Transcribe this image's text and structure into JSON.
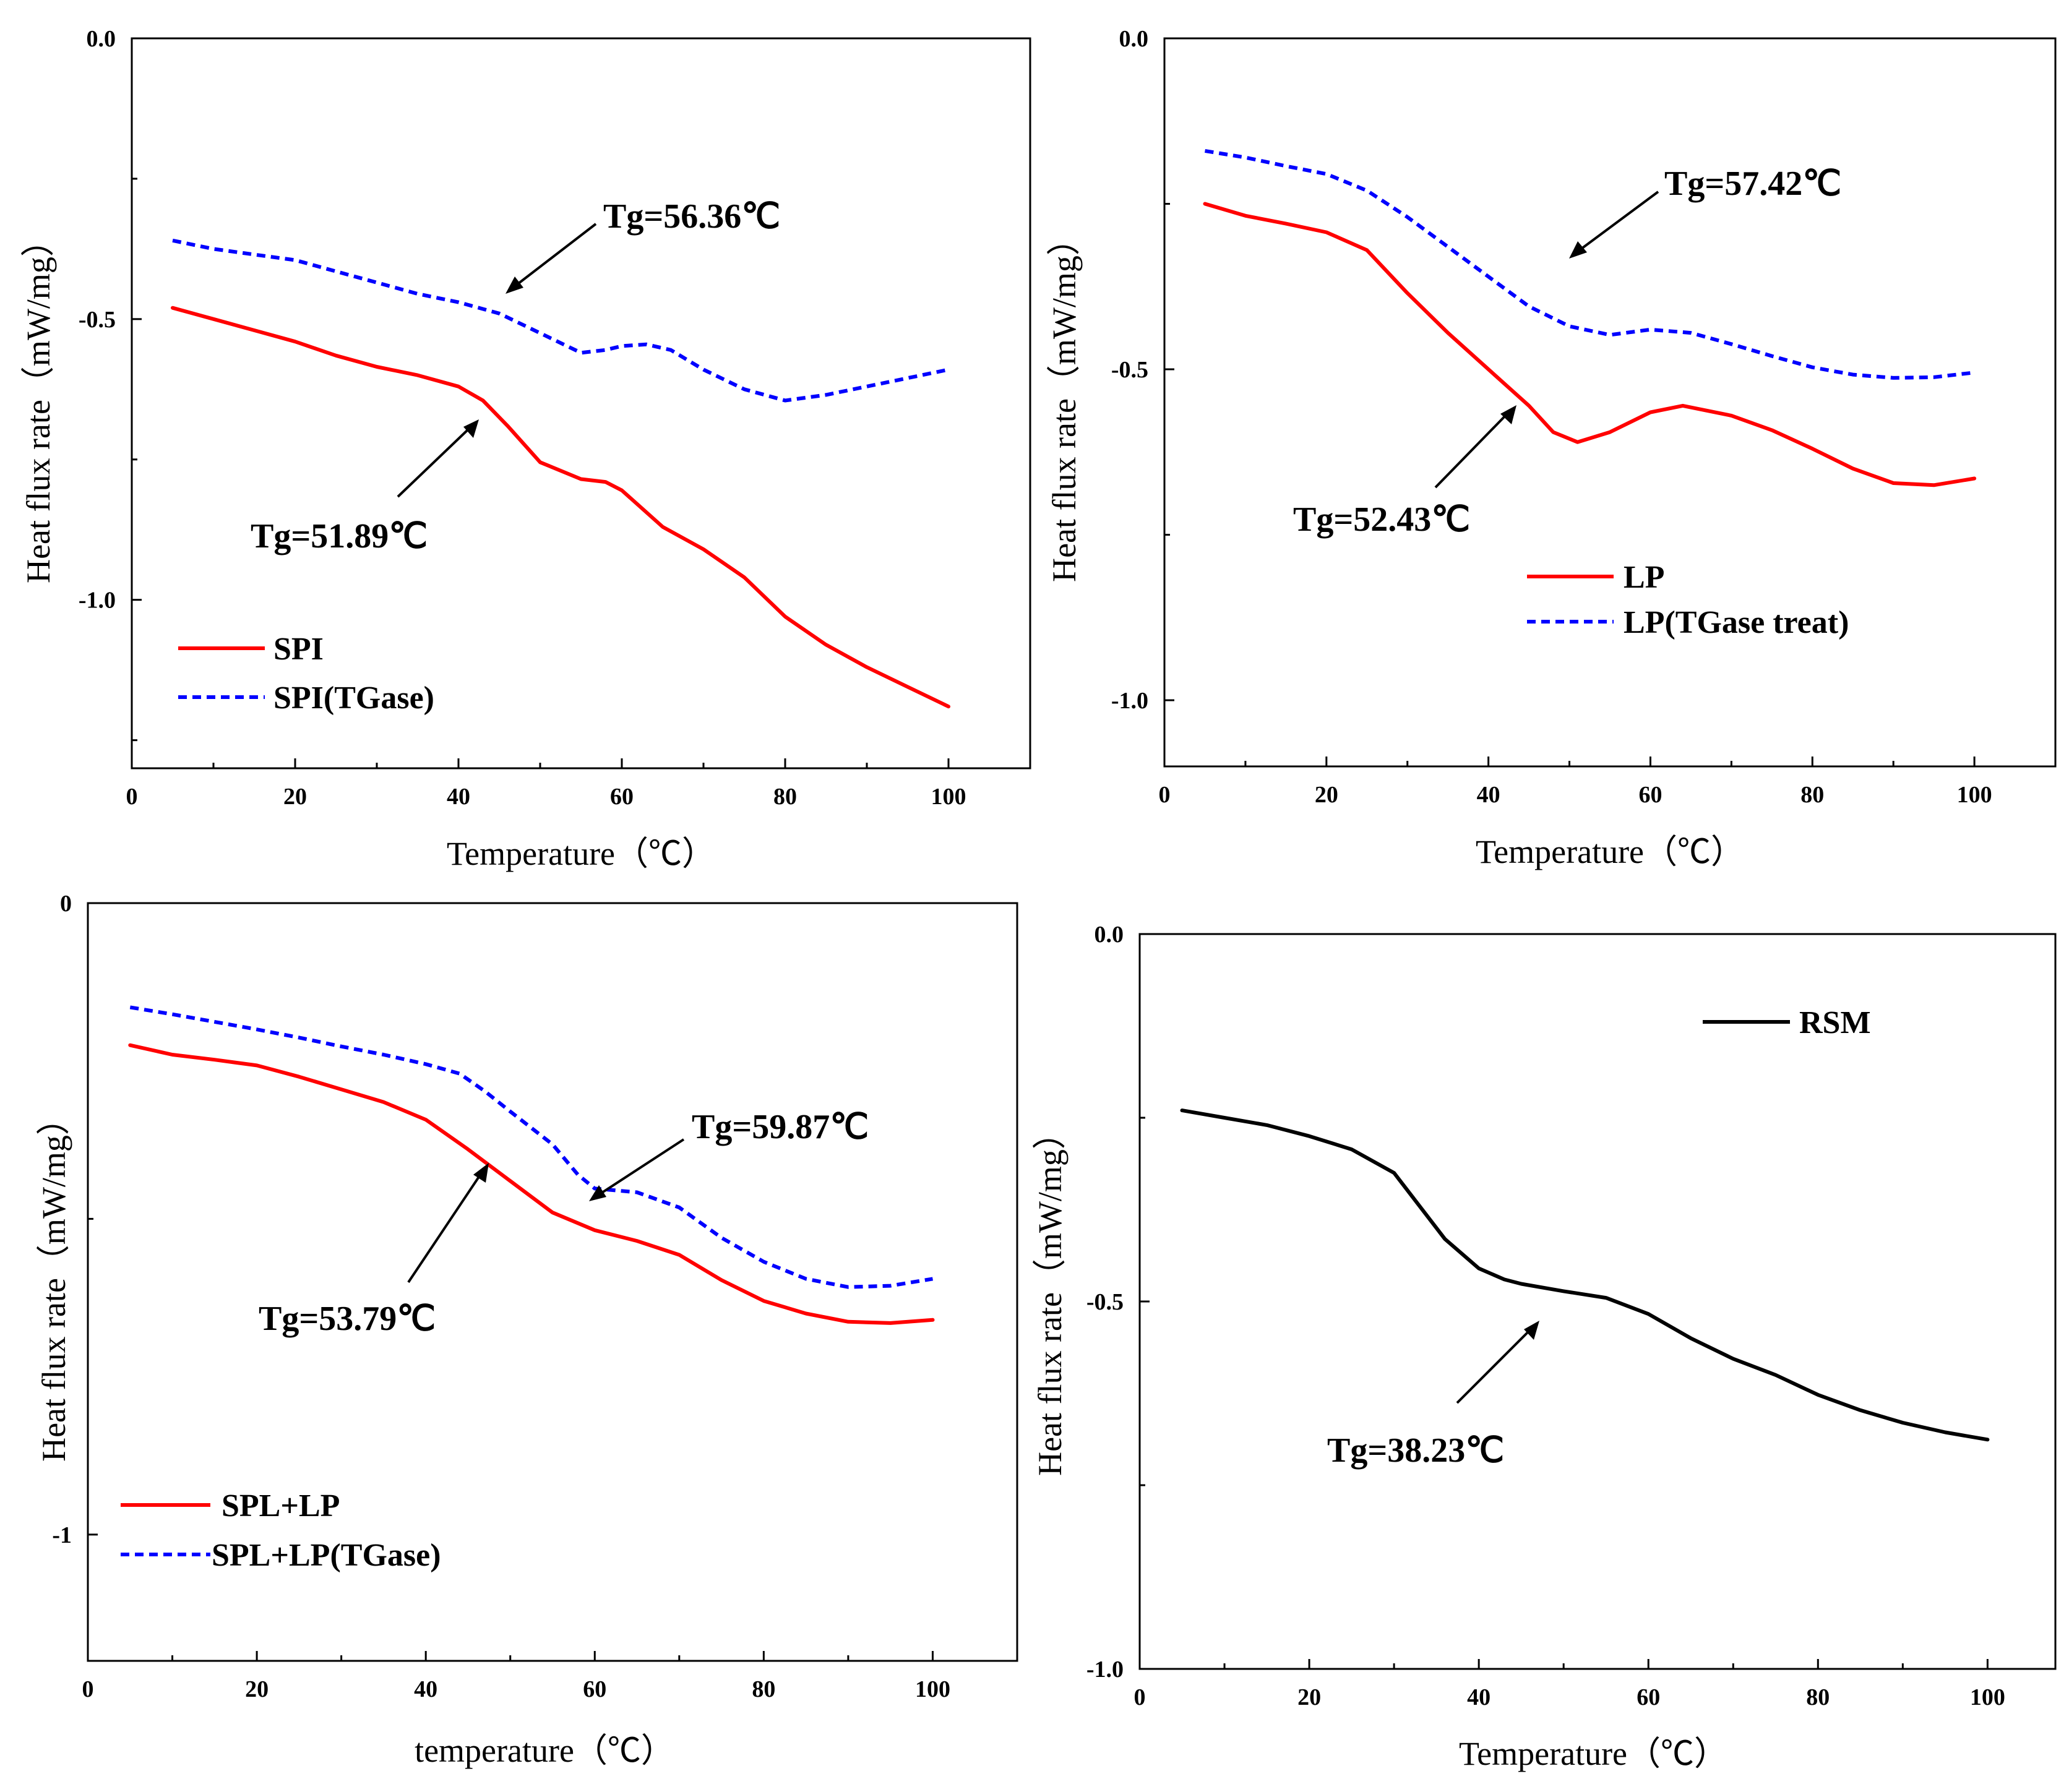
{
  "chart_data": [
    {
      "type": "line",
      "xlabel": "Temperature（℃）",
      "ylabel": "Heat flux rate（mW/mg）",
      "xlim": [
        0,
        110
      ],
      "ylim": [
        -1.3,
        0.0
      ],
      "xticks": [
        0,
        20,
        40,
        60,
        80,
        100
      ],
      "xtick_labels": [
        "0",
        "20",
        "40",
        "60",
        "80",
        "100"
      ],
      "yticks": [
        0.0,
        -0.5,
        -1.0
      ],
      "ytick_labels": [
        "0.0",
        "-0.5",
        "-1.0"
      ],
      "legend_position": "bottom-left",
      "series": [
        {
          "name": "SPI",
          "color": "#ff0000",
          "style": "solid",
          "x": [
            5,
            10,
            15,
            20,
            25,
            30,
            35,
            40,
            43,
            46,
            50,
            55,
            58,
            60,
            65,
            70,
            75,
            80,
            85,
            90,
            95,
            100
          ],
          "y": [
            -0.48,
            -0.5,
            -0.52,
            -0.54,
            -0.565,
            -0.585,
            -0.6,
            -0.62,
            -0.645,
            -0.69,
            -0.755,
            -0.785,
            -0.79,
            -0.805,
            -0.87,
            -0.91,
            -0.96,
            -1.03,
            -1.08,
            -1.12,
            -1.155,
            -1.19
          ]
        },
        {
          "name": "SPI(TGase)",
          "color": "#0000ff",
          "style": "dashed",
          "x": [
            5,
            10,
            15,
            20,
            25,
            30,
            35,
            40,
            45,
            50,
            55,
            58,
            60,
            63,
            66,
            70,
            75,
            80,
            85,
            90,
            95,
            100
          ],
          "y": [
            -0.36,
            -0.375,
            -0.385,
            -0.395,
            -0.415,
            -0.435,
            -0.455,
            -0.47,
            -0.49,
            -0.525,
            -0.56,
            -0.555,
            -0.548,
            -0.545,
            -0.555,
            -0.59,
            -0.625,
            -0.645,
            -0.635,
            -0.62,
            -0.605,
            -0.59
          ]
        }
      ],
      "annotations": [
        {
          "text": "Tg=56.36℃",
          "x": 45.4,
          "y": -0.45
        },
        {
          "text": "Tg=51.89℃",
          "x": 42.0,
          "y": -0.68
        }
      ]
    },
    {
      "type": "line",
      "xlabel": "Temperature（℃）",
      "ylabel": "Heat flux rate（mW/mg）",
      "xlim": [
        0,
        110
      ],
      "ylim": [
        -1.1,
        0.0
      ],
      "xticks": [
        0,
        20,
        40,
        60,
        80,
        100
      ],
      "xtick_labels": [
        "0",
        "20",
        "40",
        "60",
        "80",
        "100"
      ],
      "yticks": [
        0.0,
        -0.5,
        -1.0
      ],
      "ytick_labels": [
        "0.0",
        "-0.5",
        "-1.0"
      ],
      "legend_position": "bottom-right",
      "series": [
        {
          "name": "LP",
          "color": "#ff0000",
          "style": "solid",
          "x": [
            5,
            10,
            15,
            20,
            25,
            30,
            35,
            40,
            45,
            48,
            51,
            55,
            60,
            64,
            70,
            75,
            80,
            85,
            90,
            95,
            100
          ],
          "y": [
            -0.25,
            -0.268,
            -0.28,
            -0.293,
            -0.32,
            -0.385,
            -0.445,
            -0.5,
            -0.555,
            -0.595,
            -0.61,
            -0.595,
            -0.565,
            -0.555,
            -0.57,
            -0.592,
            -0.62,
            -0.65,
            -0.672,
            -0.675,
            -0.665
          ]
        },
        {
          "name": "LP(TGase treat)",
          "color": "#0000ff",
          "style": "dashed",
          "x": [
            5,
            10,
            15,
            20,
            25,
            30,
            35,
            40,
            45,
            50,
            55,
            60,
            65,
            70,
            75,
            80,
            85,
            90,
            95,
            100
          ],
          "y": [
            -0.17,
            -0.18,
            -0.193,
            -0.205,
            -0.23,
            -0.27,
            -0.315,
            -0.36,
            -0.405,
            -0.435,
            -0.448,
            -0.44,
            -0.445,
            -0.462,
            -0.48,
            -0.497,
            -0.508,
            -0.513,
            -0.512,
            -0.505
          ]
        }
      ],
      "annotations": [
        {
          "text": "Tg=57.42℃",
          "x": 50.5,
          "y": -0.33
        },
        {
          "text": "Tg=52.43℃",
          "x": 43.7,
          "y": -0.55
        }
      ]
    },
    {
      "type": "line",
      "xlabel": "temperature（℃）",
      "ylabel": "Heat flux rate（mW/mg）",
      "xlim": [
        0,
        110
      ],
      "ylim": [
        -1.2,
        0.0
      ],
      "xticks": [
        0,
        20,
        40,
        60,
        80,
        100
      ],
      "xtick_labels": [
        "0",
        "20",
        "40",
        "60",
        "80",
        "100"
      ],
      "yticks": [
        0,
        -1
      ],
      "ytick_labels": [
        "0",
        "-1"
      ],
      "legend_position": "bottom-left",
      "series": [
        {
          "name": "SPL+LP",
          "color": "#ff0000",
          "style": "solid",
          "x": [
            5,
            10,
            15,
            20,
            25,
            30,
            35,
            40,
            45,
            50,
            55,
            60,
            65,
            70,
            75,
            80,
            85,
            90,
            95,
            100
          ],
          "y": [
            -0.225,
            -0.24,
            -0.248,
            -0.257,
            -0.275,
            -0.295,
            -0.315,
            -0.343,
            -0.39,
            -0.44,
            -0.49,
            -0.518,
            -0.535,
            -0.557,
            -0.597,
            -0.63,
            -0.65,
            -0.663,
            -0.665,
            -0.66
          ]
        },
        {
          "name": "SPL+LP(TGase)",
          "color": "#0000ff",
          "style": "dashed",
          "x": [
            5,
            10,
            15,
            20,
            25,
            30,
            35,
            40,
            44,
            47,
            50,
            55,
            58,
            60,
            65,
            70,
            75,
            80,
            85,
            90,
            95,
            100
          ],
          "y": [
            -0.165,
            -0.176,
            -0.188,
            -0.2,
            -0.213,
            -0.227,
            -0.24,
            -0.255,
            -0.27,
            -0.298,
            -0.33,
            -0.382,
            -0.43,
            -0.452,
            -0.458,
            -0.482,
            -0.53,
            -0.568,
            -0.595,
            -0.608,
            -0.606,
            -0.595
          ]
        }
      ],
      "annotations": [
        {
          "text": "Tg=59.87℃",
          "x": 59.87,
          "y": -0.43
        },
        {
          "text": "Tg=53.79℃",
          "x": 47.5,
          "y": -0.39
        }
      ]
    },
    {
      "type": "line",
      "xlabel": "Temperature（℃）",
      "ylabel": "Heat flux rate（mW/mg）",
      "xlim": [
        0,
        108
      ],
      "ylim": [
        -1.0,
        0.0
      ],
      "xticks": [
        0,
        20,
        40,
        60,
        80,
        100
      ],
      "xtick_labels": [
        "0",
        "20",
        "40",
        "60",
        "80",
        "100"
      ],
      "yticks": [
        0.0,
        -0.5,
        -1.0
      ],
      "ytick_labels": [
        "0.0",
        "-0.5",
        "-1.0"
      ],
      "legend_position": "top-right",
      "series": [
        {
          "name": "RSM",
          "color": "#000000",
          "style": "solid",
          "x": [
            5,
            10,
            15,
            20,
            25,
            30,
            33,
            36,
            40,
            43,
            45,
            50,
            55,
            60,
            65,
            70,
            75,
            80,
            85,
            90,
            95,
            100
          ],
          "y": [
            -0.24,
            -0.25,
            -0.26,
            -0.275,
            -0.293,
            -0.325,
            -0.37,
            -0.415,
            -0.455,
            -0.47,
            -0.476,
            -0.486,
            -0.495,
            -0.517,
            -0.55,
            -0.578,
            -0.6,
            -0.627,
            -0.648,
            -0.665,
            -0.678,
            -0.688
          ]
        }
      ],
      "annotations": [
        {
          "text": "Tg=38.23℃",
          "x": 48.5,
          "y": -0.53
        }
      ]
    }
  ]
}
